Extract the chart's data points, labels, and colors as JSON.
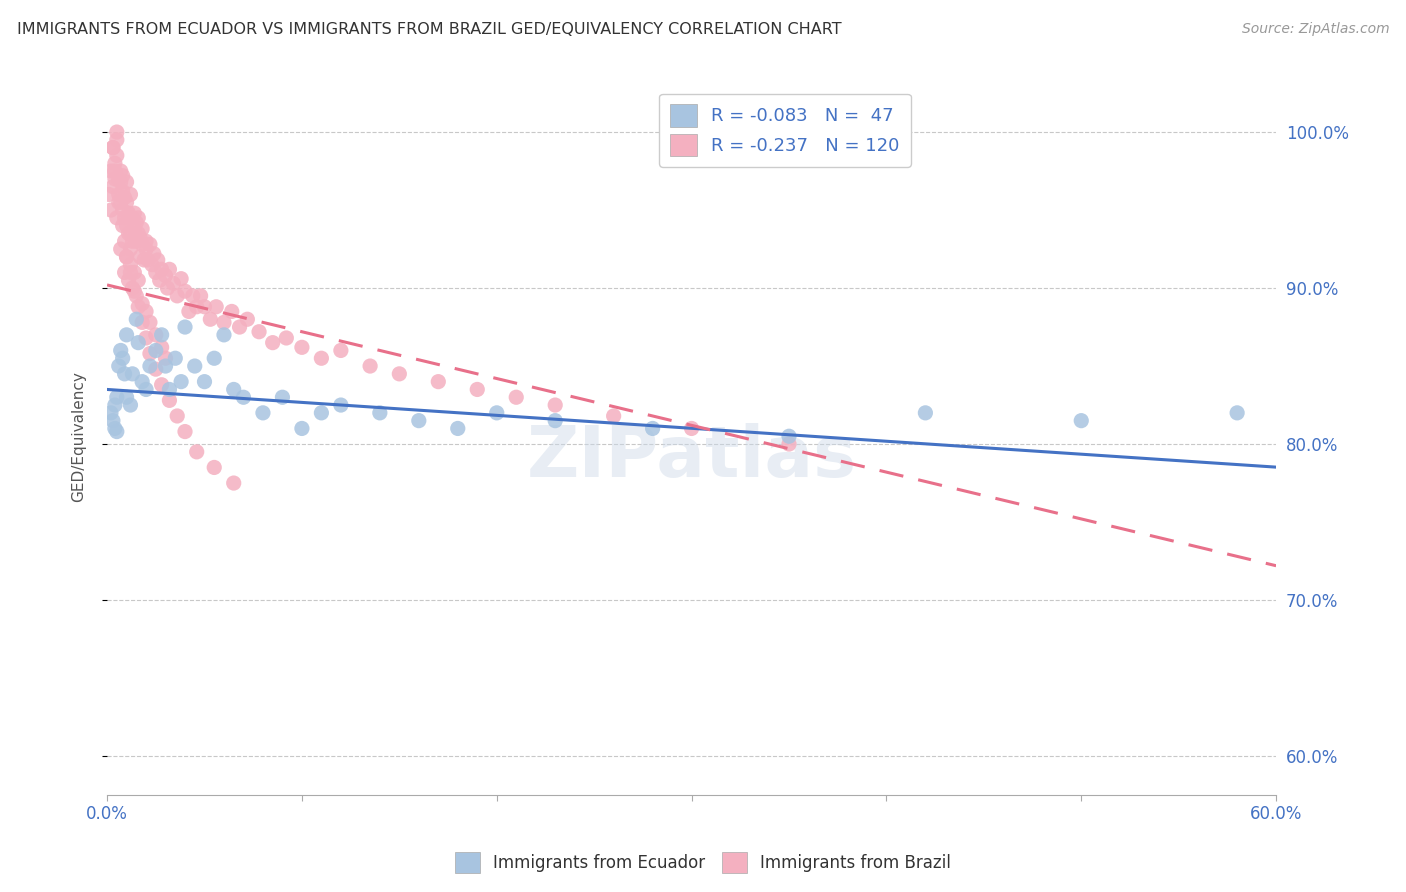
{
  "title": "IMMIGRANTS FROM ECUADOR VS IMMIGRANTS FROM BRAZIL GED/EQUIVALENCY CORRELATION CHART",
  "source": "Source: ZipAtlas.com",
  "ylabel": "GED/Equivalency",
  "ytick_labels": [
    "60.0%",
    "70.0%",
    "80.0%",
    "90.0%",
    "100.0%"
  ],
  "ytick_values": [
    0.6,
    0.7,
    0.8,
    0.9,
    1.0
  ],
  "xlim": [
    0.0,
    0.6
  ],
  "ylim": [
    0.575,
    1.035
  ],
  "ecuador_R": -0.083,
  "ecuador_N": 47,
  "brazil_R": -0.237,
  "brazil_N": 120,
  "ecuador_color": "#a8c4e0",
  "brazil_color": "#f4b0c0",
  "ecuador_line_color": "#4472c4",
  "brazil_line_color": "#e8708a",
  "watermark": "ZIPatlas",
  "legend_ecuador_label": "R = -0.083   N =  47",
  "legend_brazil_label": "R = -0.237   N = 120",
  "ecuador_scatter_x": [
    0.002,
    0.003,
    0.004,
    0.004,
    0.005,
    0.005,
    0.006,
    0.007,
    0.008,
    0.009,
    0.01,
    0.01,
    0.012,
    0.013,
    0.015,
    0.016,
    0.018,
    0.02,
    0.022,
    0.025,
    0.028,
    0.03,
    0.032,
    0.035,
    0.038,
    0.04,
    0.045,
    0.05,
    0.055,
    0.06,
    0.065,
    0.07,
    0.08,
    0.09,
    0.1,
    0.11,
    0.12,
    0.14,
    0.16,
    0.18,
    0.2,
    0.23,
    0.28,
    0.35,
    0.42,
    0.5,
    0.58
  ],
  "ecuador_scatter_y": [
    0.82,
    0.815,
    0.81,
    0.825,
    0.808,
    0.83,
    0.85,
    0.86,
    0.855,
    0.845,
    0.83,
    0.87,
    0.825,
    0.845,
    0.88,
    0.865,
    0.84,
    0.835,
    0.85,
    0.86,
    0.87,
    0.85,
    0.835,
    0.855,
    0.84,
    0.875,
    0.85,
    0.84,
    0.855,
    0.87,
    0.835,
    0.83,
    0.82,
    0.83,
    0.81,
    0.82,
    0.825,
    0.82,
    0.815,
    0.81,
    0.82,
    0.815,
    0.81,
    0.805,
    0.82,
    0.815,
    0.82
  ],
  "brazil_scatter_x": [
    0.001,
    0.002,
    0.002,
    0.003,
    0.003,
    0.004,
    0.004,
    0.005,
    0.005,
    0.005,
    0.006,
    0.006,
    0.007,
    0.007,
    0.007,
    0.008,
    0.008,
    0.008,
    0.009,
    0.009,
    0.01,
    0.01,
    0.01,
    0.011,
    0.011,
    0.012,
    0.012,
    0.012,
    0.013,
    0.013,
    0.014,
    0.014,
    0.015,
    0.015,
    0.016,
    0.016,
    0.017,
    0.017,
    0.018,
    0.018,
    0.019,
    0.02,
    0.02,
    0.021,
    0.022,
    0.023,
    0.024,
    0.025,
    0.026,
    0.027,
    0.028,
    0.03,
    0.031,
    0.032,
    0.034,
    0.036,
    0.038,
    0.04,
    0.042,
    0.044,
    0.046,
    0.048,
    0.05,
    0.053,
    0.056,
    0.06,
    0.064,
    0.068,
    0.072,
    0.078,
    0.085,
    0.092,
    0.1,
    0.11,
    0.12,
    0.135,
    0.15,
    0.17,
    0.19,
    0.21,
    0.23,
    0.26,
    0.3,
    0.35,
    0.005,
    0.007,
    0.009,
    0.01,
    0.011,
    0.012,
    0.013,
    0.014,
    0.015,
    0.016,
    0.018,
    0.02,
    0.022,
    0.025,
    0.028,
    0.03,
    0.003,
    0.004,
    0.006,
    0.008,
    0.009,
    0.01,
    0.012,
    0.014,
    0.016,
    0.018,
    0.02,
    0.022,
    0.025,
    0.028,
    0.032,
    0.036,
    0.04,
    0.046,
    0.055,
    0.065
  ],
  "brazil_scatter_y": [
    0.96,
    0.975,
    0.95,
    0.99,
    0.965,
    0.98,
    0.97,
    0.995,
    0.985,
    1.0,
    0.97,
    0.96,
    0.975,
    0.955,
    0.968,
    0.95,
    0.962,
    0.972,
    0.945,
    0.958,
    0.94,
    0.955,
    0.968,
    0.935,
    0.948,
    0.96,
    0.935,
    0.925,
    0.945,
    0.93,
    0.938,
    0.948,
    0.93,
    0.942,
    0.935,
    0.945,
    0.92,
    0.932,
    0.928,
    0.938,
    0.918,
    0.93,
    0.925,
    0.918,
    0.928,
    0.915,
    0.922,
    0.91,
    0.918,
    0.905,
    0.912,
    0.908,
    0.9,
    0.912,
    0.903,
    0.895,
    0.906,
    0.898,
    0.885,
    0.895,
    0.888,
    0.895,
    0.888,
    0.88,
    0.888,
    0.878,
    0.885,
    0.875,
    0.88,
    0.872,
    0.865,
    0.868,
    0.862,
    0.855,
    0.86,
    0.85,
    0.845,
    0.84,
    0.835,
    0.83,
    0.825,
    0.818,
    0.81,
    0.8,
    0.945,
    0.925,
    0.91,
    0.92,
    0.905,
    0.915,
    0.9,
    0.91,
    0.895,
    0.905,
    0.89,
    0.885,
    0.878,
    0.87,
    0.862,
    0.855,
    0.99,
    0.975,
    0.955,
    0.94,
    0.93,
    0.92,
    0.91,
    0.898,
    0.888,
    0.878,
    0.868,
    0.858,
    0.848,
    0.838,
    0.828,
    0.818,
    0.808,
    0.795,
    0.785,
    0.775
  ]
}
